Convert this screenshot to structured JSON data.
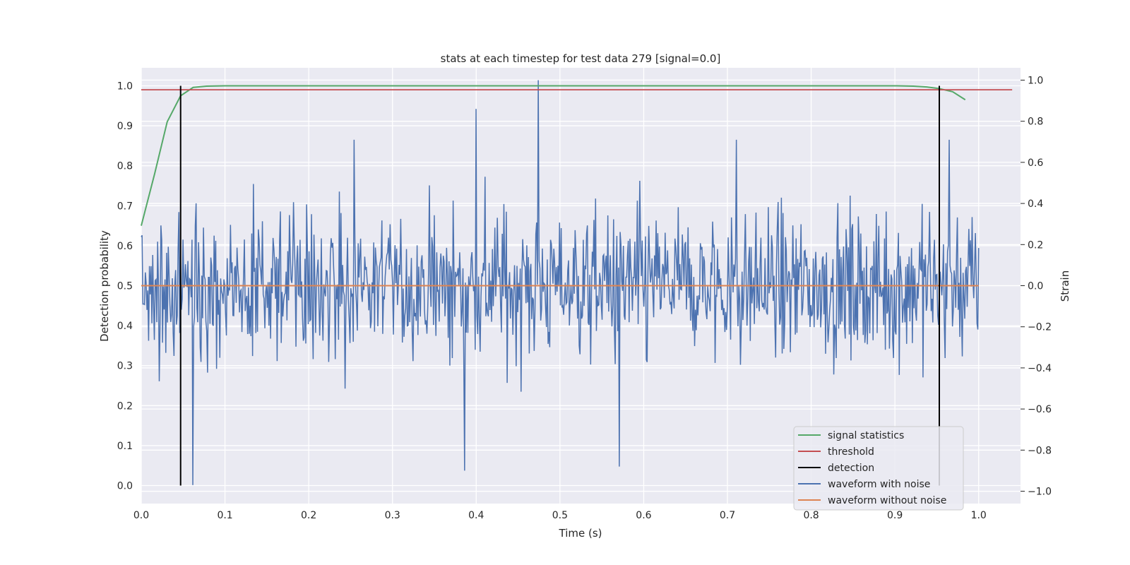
{
  "chart_data": {
    "type": "line",
    "title": "stats at each timestep for test data 279 [signal=0.0]",
    "xlabel": "Time (s)",
    "ylabel_left": "Detection probability",
    "ylabel_right": "Strain",
    "xlim": [
      0.0,
      1.05
    ],
    "ylim_left": [
      -0.045,
      1.045
    ],
    "ylim_right": [
      -1.06,
      1.06
    ],
    "x_ticks": [
      "0.0",
      "0.1",
      "0.2",
      "0.3",
      "0.4",
      "0.5",
      "0.6",
      "0.7",
      "0.8",
      "0.9",
      "1.0"
    ],
    "y_ticks_left": [
      "0.0",
      "0.1",
      "0.2",
      "0.3",
      "0.4",
      "0.5",
      "0.6",
      "0.7",
      "0.8",
      "0.9",
      "1.0"
    ],
    "y_ticks_right": [
      "−1.0",
      "−0.8",
      "−0.6",
      "−0.4",
      "−0.2",
      "0.0",
      "0.2",
      "0.4",
      "0.6",
      "0.8",
      "1.0"
    ],
    "grid": true,
    "legend_position": "lower-right",
    "series": [
      {
        "name": "signal statistics",
        "axis": "left",
        "color": "#55a868",
        "x": [
          0.0,
          0.016,
          0.031,
          0.047,
          0.062,
          0.078,
          0.1,
          0.2,
          0.3,
          0.4,
          0.5,
          0.6,
          0.7,
          0.8,
          0.9,
          0.922,
          0.938,
          0.953,
          0.969,
          0.984
        ],
        "y": [
          0.65,
          0.78,
          0.91,
          0.975,
          0.996,
          0.999,
          1.0,
          1.0,
          1.0,
          1.0,
          1.0,
          1.0,
          1.0,
          1.0,
          1.0,
          0.999,
          0.997,
          0.993,
          0.985,
          0.965
        ]
      },
      {
        "name": "threshold",
        "axis": "left",
        "color": "#c44e52",
        "value": 0.99,
        "x_range": [
          0.0,
          1.04
        ]
      },
      {
        "name": "detection",
        "axis": "left",
        "color": "#000000",
        "x": [
          0.047,
          0.953
        ],
        "y_range": [
          0.0,
          1.0
        ]
      },
      {
        "name": "waveform with noise",
        "axis": "right",
        "color": "#4c72b0",
        "samples": 1024,
        "x_range": [
          0.0,
          1.0
        ],
        "y_range": [
          -1.0,
          1.0
        ],
        "peaks": [
          {
            "x": 0.474,
            "y": 1.0
          },
          {
            "x": 0.062,
            "y": -0.97
          },
          {
            "x": 0.386,
            "y": -0.9
          },
          {
            "x": 0.571,
            "y": -0.88
          },
          {
            "x": 0.4,
            "y": 0.86
          },
          {
            "x": 0.254,
            "y": 0.71
          },
          {
            "x": 0.711,
            "y": 0.71
          },
          {
            "x": 0.965,
            "y": 0.71
          }
        ]
      },
      {
        "name": "waveform without noise",
        "axis": "right",
        "color": "#dd8452",
        "value": 0.0,
        "x_range": [
          0.0,
          1.0
        ]
      }
    ]
  }
}
